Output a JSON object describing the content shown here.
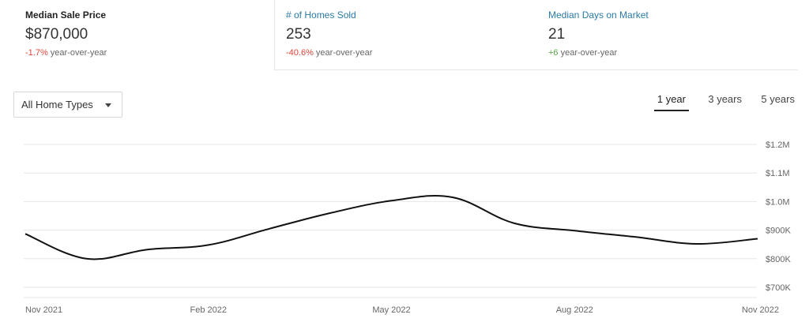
{
  "tabs": [
    {
      "title": "Median Sale Price",
      "value": "$870,000",
      "change": "-1.7%",
      "change_suffix": " year-over-year",
      "change_sign": "neg"
    },
    {
      "title": "# of Homes Sold",
      "value": "253",
      "change": "-40.6%",
      "change_suffix": " year-over-year",
      "change_sign": "neg"
    },
    {
      "title": "Median Days on Market",
      "value": "21",
      "change": "+6",
      "change_suffix": " year-over-year",
      "change_sign": "pos"
    }
  ],
  "filter": {
    "selected": "All Home Types"
  },
  "ranges": [
    {
      "label": "1 year",
      "selected": true
    },
    {
      "label": "3 years",
      "selected": false
    },
    {
      "label": "5 years",
      "selected": false
    }
  ],
  "colors": {
    "line": "#111111",
    "grid": "#e6e6e6",
    "negative": "#e0453a",
    "positive": "#5aa84a",
    "link": "#2a7aa6"
  },
  "chart_data": {
    "type": "line",
    "title": "",
    "xlabel": "",
    "ylabel": "",
    "x": [
      "2021-11",
      "2021-12",
      "2022-01",
      "2022-02",
      "2022-03",
      "2022-04",
      "2022-05",
      "2022-06",
      "2022-07",
      "2022-08",
      "2022-09",
      "2022-10",
      "2022-11"
    ],
    "series": [
      {
        "values": [
          887000,
          800000,
          832000,
          848000,
          905000,
          960000,
          1003000,
          1015000,
          925000,
          898000,
          876000,
          852000,
          870000
        ]
      }
    ],
    "ylim": [
      665000,
      1200000
    ],
    "yticks": [
      {
        "value": 1200000,
        "label": "$1.2M"
      },
      {
        "value": 1100000,
        "label": "$1.1M"
      },
      {
        "value": 1000000,
        "label": "$1.0M"
      },
      {
        "value": 900000,
        "label": "$900K"
      },
      {
        "value": 800000,
        "label": "$800K"
      },
      {
        "value": 700000,
        "label": "$700K"
      }
    ],
    "xticks": [
      {
        "value": "2021-11",
        "label": "Nov 2021"
      },
      {
        "value": "2022-02",
        "label": "Feb 2022"
      },
      {
        "value": "2022-05",
        "label": "May 2022"
      },
      {
        "value": "2022-08",
        "label": "Aug 2022"
      },
      {
        "value": "2022-11",
        "label": "Nov 2022"
      }
    ],
    "grid": true,
    "legend": "none"
  }
}
